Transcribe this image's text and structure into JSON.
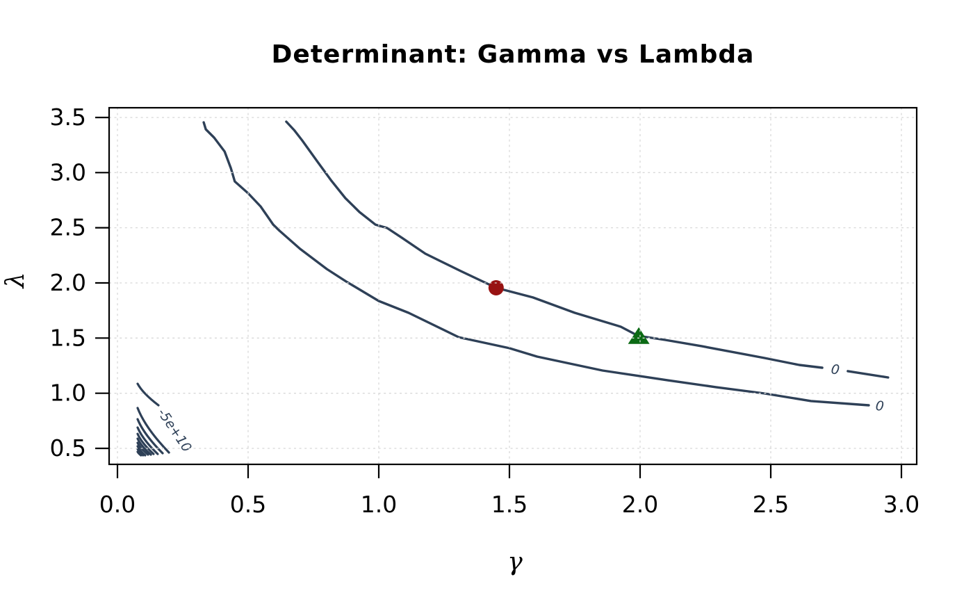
{
  "chart_data": {
    "type": "contour",
    "title": "Determinant: Gamma vs Lambda",
    "xlabel": "γ",
    "ylabel": "λ",
    "x_ticks": [
      "0.0",
      "0.5",
      "1.0",
      "1.5",
      "2.0",
      "2.5",
      "3.0"
    ],
    "x_tick_values": [
      0.0,
      0.5,
      1.0,
      1.5,
      2.0,
      2.5,
      3.0
    ],
    "y_ticks": [
      "0.5",
      "1.0",
      "1.5",
      "2.0",
      "2.5",
      "3.0",
      "3.5"
    ],
    "y_tick_values": [
      0.5,
      1.0,
      1.5,
      2.0,
      2.5,
      3.0,
      3.5
    ],
    "xlim": [
      -0.03,
      3.06
    ],
    "ylim": [
      0.36,
      3.59
    ],
    "grid": {
      "on": true,
      "style": "dotted"
    },
    "legend": "none",
    "colors": {
      "contour": "#2e4057",
      "grid": "#d8d8d8",
      "axis": "#000000",
      "background": "#ffffff",
      "point_red": "#981212",
      "point_green": "#0b6a14"
    },
    "contours": [
      {
        "id": "zero-upper",
        "level": 0,
        "label": "0",
        "label_pos": [
          2.747,
          1.212
        ],
        "label_angle": 8,
        "segments": [
          [
            [
              0.646,
              3.462
            ],
            [
              0.676,
              3.386
            ],
            [
              0.707,
              3.292
            ],
            [
              0.766,
              3.097
            ],
            [
              0.819,
              2.926
            ],
            [
              0.872,
              2.769
            ],
            [
              0.926,
              2.643
            ],
            [
              0.987,
              2.529
            ],
            [
              1.032,
              2.498
            ],
            [
              1.088,
              2.41
            ],
            [
              1.178,
              2.265
            ],
            [
              1.314,
              2.107
            ],
            [
              1.449,
              1.956
            ],
            [
              1.59,
              1.868
            ],
            [
              1.75,
              1.729
            ],
            [
              1.926,
              1.603
            ],
            [
              1.992,
              1.521
            ],
            [
              2.096,
              1.483
            ],
            [
              2.237,
              1.426
            ],
            [
              2.476,
              1.319
            ],
            [
              2.609,
              1.256
            ],
            [
              2.697,
              1.231
            ]
          ],
          [
            [
              2.795,
              1.2
            ],
            [
              2.949,
              1.143
            ]
          ]
        ]
      },
      {
        "id": "zero-lower",
        "level": 0,
        "label": "0",
        "label_pos": [
          2.917,
          0.882
        ],
        "label_angle": 5,
        "segments": [
          [
            [
              0.33,
              3.456
            ],
            [
              0.338,
              3.393
            ],
            [
              0.37,
              3.317
            ],
            [
              0.41,
              3.191
            ],
            [
              0.434,
              3.04
            ],
            [
              0.449,
              2.92
            ],
            [
              0.5,
              2.813
            ],
            [
              0.548,
              2.693
            ],
            [
              0.596,
              2.529
            ],
            [
              0.62,
              2.473
            ],
            [
              0.699,
              2.309
            ],
            [
              0.801,
              2.126
            ],
            [
              0.875,
              2.013
            ],
            [
              1.0,
              1.836
            ],
            [
              1.114,
              1.729
            ],
            [
              1.306,
              1.508
            ],
            [
              1.5,
              1.408
            ],
            [
              1.606,
              1.332
            ],
            [
              1.856,
              1.206
            ],
            [
              2.0,
              1.155
            ],
            [
              2.104,
              1.118
            ],
            [
              2.29,
              1.055
            ],
            [
              2.476,
              0.998
            ],
            [
              2.654,
              0.929
            ],
            [
              2.875,
              0.891
            ]
          ]
        ]
      },
      {
        "id": "neg-5e10-fan",
        "level": "-5e+10",
        "label": "-5e+10",
        "label_pos": [
          0.218,
          0.664
        ],
        "label_angle": 56,
        "arcs": [
          [
            0.077,
            1.086,
            0.157,
            0.891
          ],
          [
            0.077,
            0.866,
            0.197,
            0.462
          ],
          [
            0.077,
            0.765,
            0.173,
            0.456
          ],
          [
            0.077,
            0.689,
            0.154,
            0.449
          ],
          [
            0.077,
            0.632,
            0.138,
            0.449
          ],
          [
            0.077,
            0.588,
            0.128,
            0.443
          ],
          [
            0.077,
            0.55,
            0.117,
            0.443
          ],
          [
            0.077,
            0.519,
            0.106,
            0.437
          ],
          [
            0.077,
            0.494,
            0.098,
            0.437
          ],
          [
            0.077,
            0.469,
            0.09,
            0.437
          ]
        ]
      }
    ],
    "points": [
      {
        "id": "red-circle",
        "shape": "circle",
        "x": 1.449,
        "y": 1.956,
        "color": "#981212"
      },
      {
        "id": "green-triangle",
        "shape": "triangle-up",
        "x": 1.995,
        "y": 1.513,
        "color": "#0b6a14"
      }
    ]
  }
}
